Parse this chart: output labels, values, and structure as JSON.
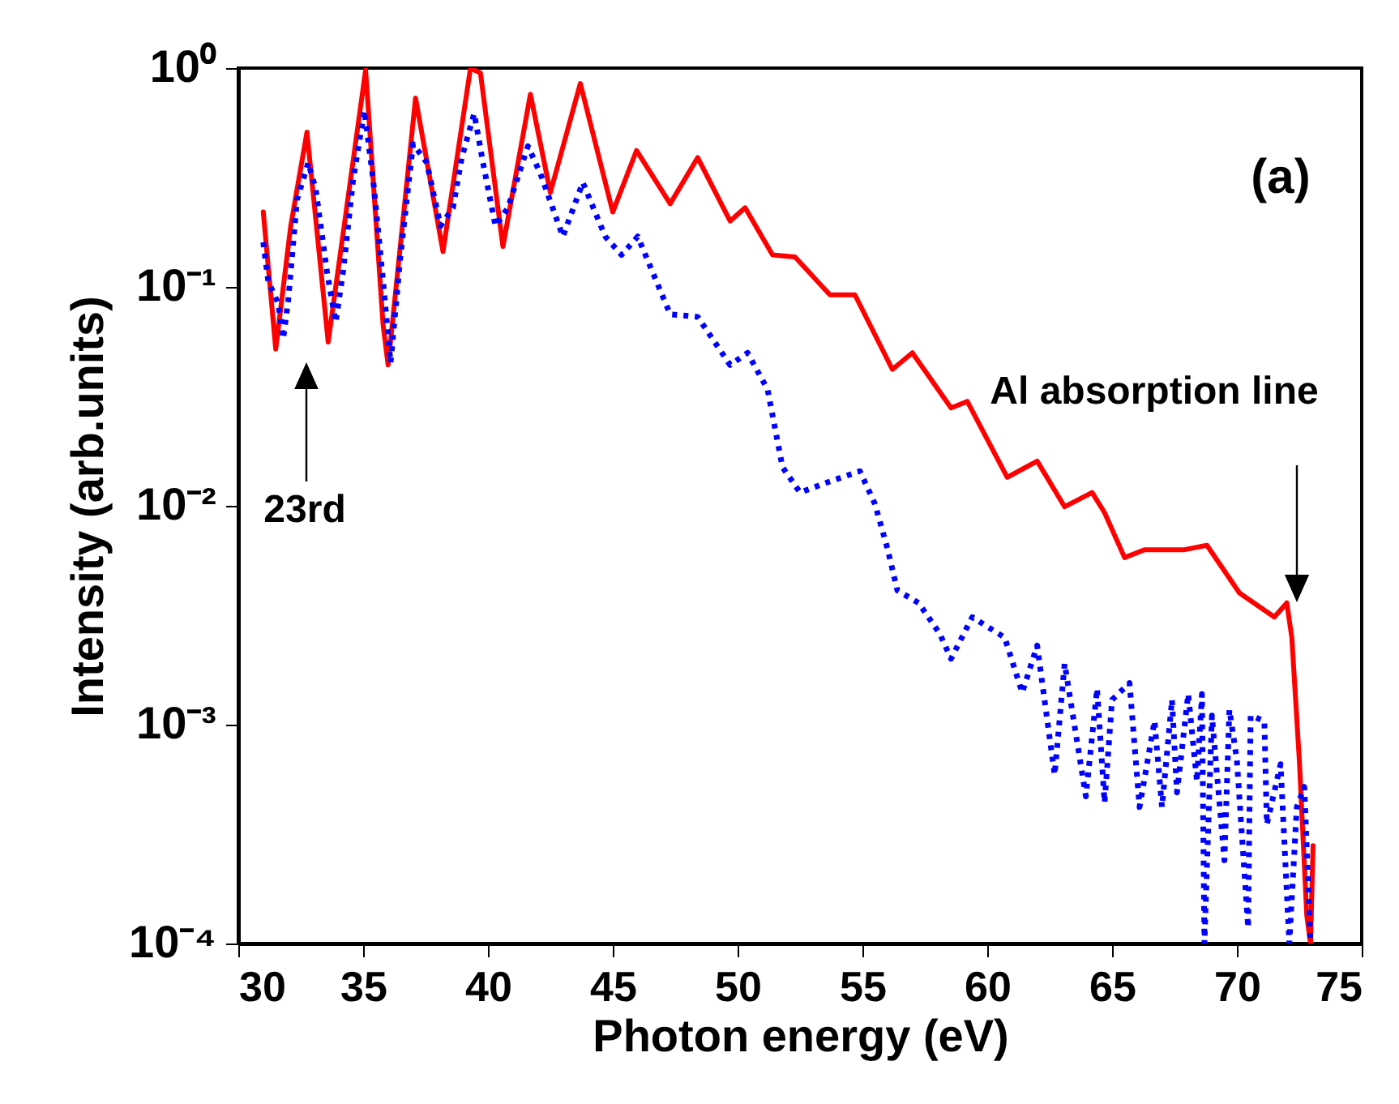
{
  "chart_data": {
    "type": "line",
    "xlabel": "Photon energy (eV)",
    "ylabel": "Intensity (arb.units)",
    "log": true,
    "xlim": [
      30,
      75
    ],
    "xticks": [
      30,
      35,
      40,
      45,
      50,
      55,
      60,
      65,
      70,
      75
    ],
    "ylim": [
      0.0001,
      1
    ],
    "yticks": [
      {
        "value": 0.0001,
        "label": "10⁻⁴"
      },
      {
        "value": 0.001,
        "label": "10⁻³"
      },
      {
        "value": 0.01,
        "label": "10⁻²"
      },
      {
        "value": 0.1,
        "label": "10⁻¹"
      },
      {
        "value": 1,
        "label": "10⁰"
      }
    ],
    "grid": false,
    "marker": "none",
    "annotations": [
      "(a)",
      "23rd",
      "Al absorption line"
    ],
    "series": [
      {
        "color": "#ff0000",
        "line_style": "solid",
        "x": [
          31.0,
          31.5,
          32.1,
          32.75,
          33.6,
          35.1,
          35.8,
          36.0,
          37.1,
          38.2,
          39.3,
          39.7,
          40.6,
          41.7,
          42.5,
          43.7,
          45.0,
          45.95,
          47.3,
          48.4,
          49.7,
          50.3,
          51.4,
          52.3,
          53.7,
          54.7,
          56.2,
          57.0,
          58.55,
          59.2,
          60.8,
          62.0,
          63.1,
          64.2,
          64.7,
          65.5,
          66.3,
          67.9,
          68.8,
          70.1,
          71.5,
          72.0,
          72.2,
          72.5,
          72.8,
          72.95,
          73.05
        ],
        "values": [
          0.22,
          0.052,
          0.19,
          0.51,
          0.056,
          0.98,
          0.067,
          0.044,
          0.73,
          0.145,
          1.0,
          0.95,
          0.153,
          0.76,
          0.27,
          0.85,
          0.22,
          0.42,
          0.24,
          0.39,
          0.2,
          0.23,
          0.14,
          0.137,
          0.092,
          0.092,
          0.042,
          0.05,
          0.028,
          0.03,
          0.0135,
          0.016,
          0.0099,
          0.0115,
          0.0093,
          0.0058,
          0.0063,
          0.0063,
          0.0066,
          0.004,
          0.0031,
          0.0036,
          0.0025,
          0.00069,
          0.000134,
          0.0001,
          0.00028
        ]
      },
      {
        "color": "#0000ff",
        "line_style": "dotted",
        "x": [
          31.0,
          31.2,
          31.6,
          31.8,
          32.0,
          32.35,
          32.8,
          33.1,
          33.55,
          33.9,
          34.2,
          34.6,
          35.05,
          35.4,
          35.8,
          36.1,
          36.5,
          37.0,
          37.55,
          38.1,
          38.6,
          38.95,
          39.45,
          39.8,
          40.3,
          40.8,
          41.6,
          42.1,
          43.0,
          43.8,
          44.7,
          45.35,
          46.0,
          47.3,
          48.4,
          49.7,
          50.4,
          51.2,
          51.8,
          52.5,
          53.6,
          54.9,
          55.5,
          56.0,
          56.4,
          57.25,
          58.1,
          58.55,
          59.4,
          60.7,
          61.4,
          62.0,
          62.7,
          63.1,
          63.95,
          64.4,
          64.7,
          65.0,
          65.7,
          66.1,
          66.7,
          67.0,
          67.4,
          67.6,
          68.05,
          68.4,
          68.6,
          68.7,
          69.0,
          69.5,
          69.7,
          70.0,
          70.45,
          70.55,
          71.1,
          71.2,
          71.75,
          72.1,
          72.4,
          72.7,
          72.95
        ],
        "values": [
          0.16,
          0.106,
          0.084,
          0.058,
          0.087,
          0.25,
          0.37,
          0.28,
          0.118,
          0.069,
          0.118,
          0.31,
          0.64,
          0.31,
          0.106,
          0.045,
          0.14,
          0.45,
          0.37,
          0.19,
          0.23,
          0.39,
          0.62,
          0.37,
          0.19,
          0.23,
          0.44,
          0.33,
          0.17,
          0.3,
          0.17,
          0.14,
          0.17,
          0.075,
          0.073,
          0.044,
          0.05,
          0.034,
          0.015,
          0.0115,
          0.0128,
          0.0144,
          0.0102,
          0.0064,
          0.0041,
          0.0036,
          0.0026,
          0.002,
          0.0031,
          0.0025,
          0.0014,
          0.0023,
          0.00059,
          0.0019,
          0.00047,
          0.00146,
          0.00044,
          0.0013,
          0.00155,
          0.00042,
          0.00104,
          0.00042,
          0.0013,
          0.00049,
          0.00138,
          0.00055,
          0.00138,
          0.0001,
          0.0011,
          0.00024,
          0.00117,
          0.00069,
          0.000118,
          0.0011,
          0.00104,
          0.00035,
          0.00066,
          0.0001,
          0.00042,
          0.00052,
          0.0001
        ]
      }
    ]
  }
}
